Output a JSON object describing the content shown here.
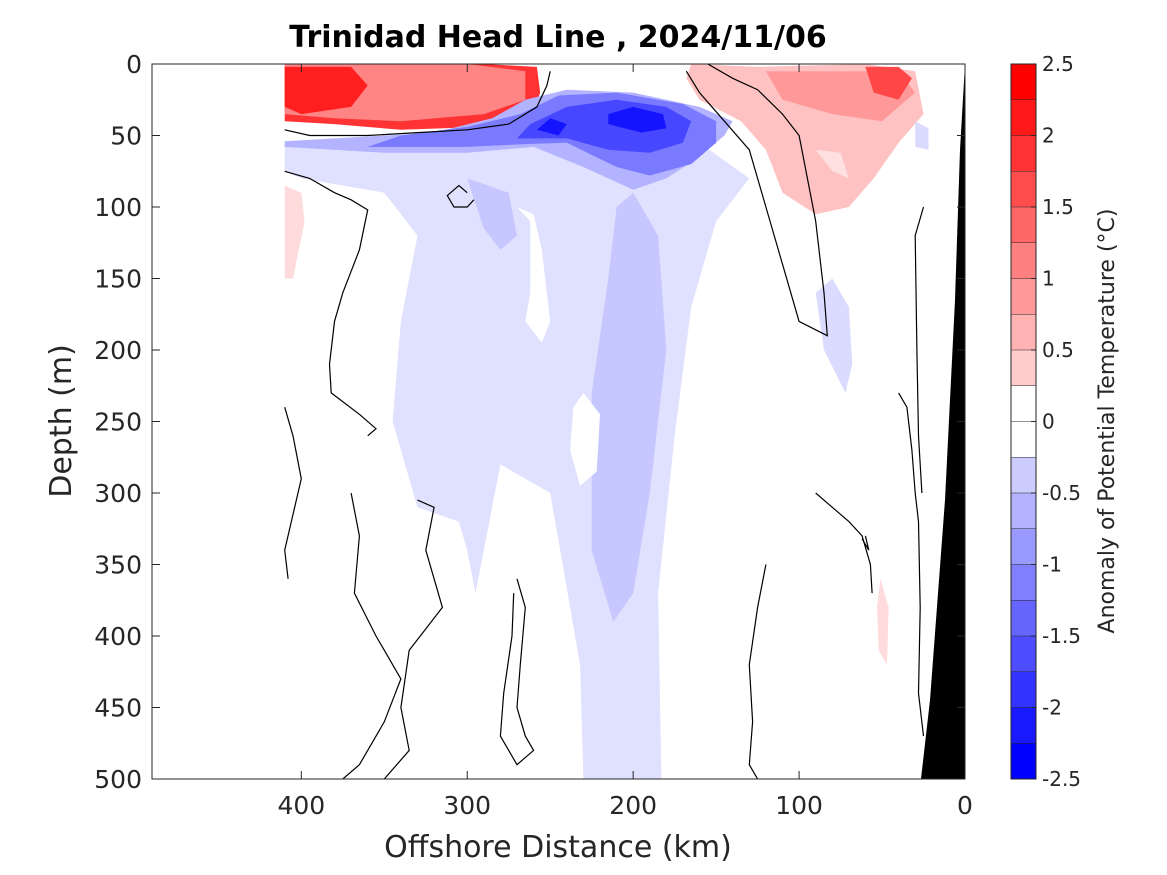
{
  "chart_data": {
    "type": "heatmap",
    "subtype": "filled-contour section",
    "title": "Trinidad Head Line , 2024/11/06",
    "xlabel": "Offshore Distance (km)",
    "ylabel": "Depth (m)",
    "xlim": [
      490,
      0
    ],
    "ylim": [
      0,
      500
    ],
    "x_reversed": true,
    "y_reversed": true,
    "xticks": [
      400,
      300,
      200,
      100,
      0
    ],
    "yticks": [
      0,
      50,
      100,
      150,
      200,
      250,
      300,
      350,
      400,
      450,
      500
    ],
    "colorbar": {
      "label": "Anomaly of Potential Temperature (°C)",
      "range": [
        -2.5,
        2.5
      ],
      "step": 0.25,
      "ticks": [
        2.5,
        2,
        1.5,
        1,
        0.5,
        0,
        -0.5,
        -1,
        -1.5,
        -2,
        -2.5
      ],
      "tick_labels": [
        "2.5",
        "2",
        "1.5",
        "1",
        "0.5",
        "0",
        "-0.5",
        "-1",
        "-1.5",
        "-2",
        "-2.5"
      ],
      "positive_color": "#ff0000",
      "negative_color": "#0000ff",
      "neutral_color": "#ffffff"
    },
    "data_coverage_km": [
      0,
      410
    ],
    "bottom_topography_color": "#000000",
    "regions": [
      {
        "feature": "warm surface layer, offshore",
        "x_range": [
          410,
          255
        ],
        "depth_range": [
          0,
          45
        ],
        "anomaly_max": 2.25
      },
      {
        "feature": "warm surface layer, nearshore",
        "x_range": [
          160,
          20
        ],
        "depth_range": [
          0,
          100
        ],
        "anomaly_max": 2.0
      },
      {
        "feature": "cold core",
        "x_range": [
          290,
          130
        ],
        "depth_range": [
          25,
          95
        ],
        "anomaly_min": -2.25
      },
      {
        "feature": "weak cool plume",
        "x_range": [
          330,
          170
        ],
        "depth_range": [
          100,
          500
        ],
        "anomaly_min": -0.75
      },
      {
        "feature": "weak warm patch offshore",
        "x_range": [
          410,
          395
        ],
        "depth_range": [
          85,
          150
        ],
        "anomaly_max": 0.5
      },
      {
        "feature": "weak warm patch nearshore",
        "x_range": [
          52,
          45
        ],
        "depth_range": [
          360,
          420
        ],
        "anomaly_max": 0.5
      }
    ]
  }
}
